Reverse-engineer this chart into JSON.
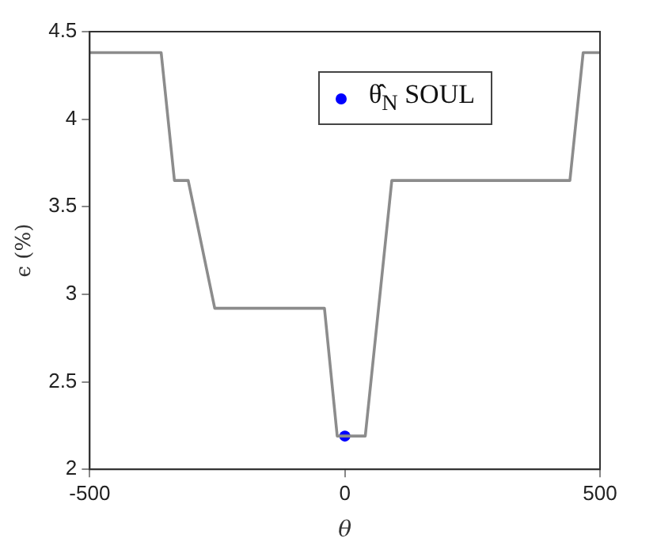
{
  "chart_data": {
    "type": "line",
    "xlabel": "θ",
    "ylabel": "ϵ (%)",
    "xlim": [
      -500,
      500
    ],
    "xticks": [
      -500,
      0,
      500
    ],
    "ylim": [
      2,
      4.5
    ],
    "yticks": [
      2,
      2.5,
      3,
      3.5,
      4,
      4.5
    ],
    "grid": false,
    "legend": "top right",
    "series": [
      {
        "color": "#8c8c8c",
        "marker": "none",
        "x": [
          -500,
          -360,
          -334,
          -307,
          -255,
          -40,
          -15,
          40,
          92,
          441,
          467,
          500
        ],
        "values": [
          4.38,
          4.38,
          3.65,
          3.65,
          2.92,
          2.92,
          2.19,
          2.19,
          3.65,
          3.65,
          4.38,
          4.38
        ]
      },
      {
        "type": "scatter",
        "name": "θ̂$_{N}$ SOUL",
        "color": "#0000ff",
        "marker": "circle",
        "x": [
          0
        ],
        "values": [
          2.19
        ]
      }
    ]
  }
}
